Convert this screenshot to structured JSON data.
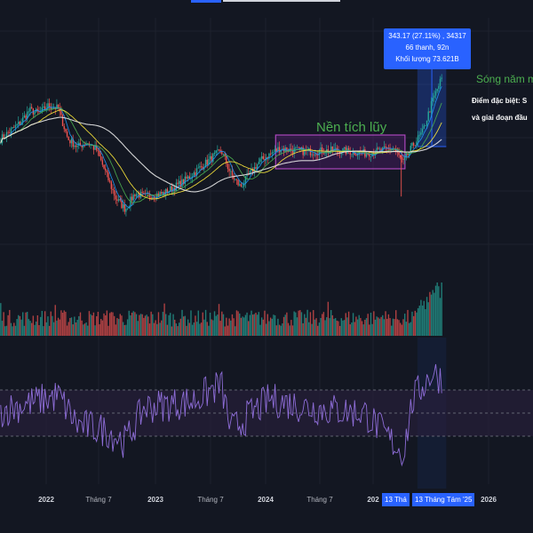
{
  "colors": {
    "background": "#131722",
    "up": "#26a69a",
    "down": "#ef5350",
    "ma_fast": "#2196f3",
    "ma_mid": "#4caf50",
    "ma_slow": "#ffeb3b",
    "ma_long": "#e8e8e8",
    "rsi": "#8e6dd8",
    "rsi_band": "#2a1f3d",
    "consolidation_box": "#7b1fa2",
    "selection": "#2962ff",
    "annotation_green": "#4caf50"
  },
  "tooltip": {
    "line1": "343.17 (27.11%) , 34317",
    "line2": "66 thanh, 92n",
    "line3": "Khối lượng 73.621B"
  },
  "annotations": {
    "consolidation": "Nền tích lũy",
    "wave": "Sóng năm m",
    "note1": "Điểm đặc biệt: S",
    "note2": "và giai đoạn đầu"
  },
  "x_axis": {
    "ticks": [
      {
        "label": "",
        "bold": false
      },
      {
        "label": "2022",
        "bold": true
      },
      {
        "label": "Tháng 7",
        "bold": false
      },
      {
        "label": "2023",
        "bold": true
      },
      {
        "label": "Tháng 7",
        "bold": false
      },
      {
        "label": "2024",
        "bold": true
      },
      {
        "label": "Tháng 7",
        "bold": false
      },
      {
        "label": "202",
        "bold": true
      },
      {
        "label": "2026",
        "bold": true
      }
    ],
    "badge_start": "13 Thá",
    "badge_end": "13 Tháng Tám '25"
  },
  "chart_data": {
    "type": "candlestick",
    "x_range": [
      "2021-10",
      "2025-08"
    ],
    "price_path": [
      {
        "date": "2021-10",
        "close": 0.62
      },
      {
        "date": "2021-12",
        "close": 0.72
      },
      {
        "date": "2022-01",
        "close": 0.8
      },
      {
        "date": "2022-02",
        "close": 0.78
      },
      {
        "date": "2022-03",
        "close": 0.83
      },
      {
        "date": "2022-04",
        "close": 0.81
      },
      {
        "date": "2022-05",
        "close": 0.62
      },
      {
        "date": "2022-06",
        "close": 0.57
      },
      {
        "date": "2022-07",
        "close": 0.6
      },
      {
        "date": "2022-08",
        "close": 0.55
      },
      {
        "date": "2022-09",
        "close": 0.4
      },
      {
        "date": "2022-10",
        "close": 0.25
      },
      {
        "date": "2022-11",
        "close": 0.18
      },
      {
        "date": "2022-12",
        "close": 0.28
      },
      {
        "date": "2023-01",
        "close": 0.26
      },
      {
        "date": "2023-03",
        "close": 0.28
      },
      {
        "date": "2023-05",
        "close": 0.35
      },
      {
        "date": "2023-07",
        "close": 0.45
      },
      {
        "date": "2023-09",
        "close": 0.55
      },
      {
        "date": "2023-10",
        "close": 0.4
      },
      {
        "date": "2023-11",
        "close": 0.32
      },
      {
        "date": "2024-01",
        "close": 0.48
      },
      {
        "date": "2024-03",
        "close": 0.56
      },
      {
        "date": "2024-06",
        "close": 0.54
      },
      {
        "date": "2024-09",
        "close": 0.55
      },
      {
        "date": "2024-12",
        "close": 0.53
      },
      {
        "date": "2025-03",
        "close": 0.56
      },
      {
        "date": "2025-04",
        "close": 0.47
      },
      {
        "date": "2025-05",
        "close": 0.58
      },
      {
        "date": "2025-06",
        "close": 0.66
      },
      {
        "date": "2025-07",
        "close": 0.85
      },
      {
        "date": "2025-08",
        "close": 1.0
      }
    ],
    "consolidation_range": [
      "2024-01",
      "2025-03"
    ],
    "selection": {
      "from": "2025-05-13",
      "to": "2025-08-13",
      "change": 343.17,
      "change_pct": 27.11
    },
    "rsi_path": [
      {
        "date": "2021-10",
        "value": 52
      },
      {
        "date": "2022-04",
        "value": 65
      },
      {
        "date": "2022-06",
        "value": 40
      },
      {
        "date": "2022-09",
        "value": 35
      },
      {
        "date": "2022-11",
        "value": 25
      },
      {
        "date": "2023-01",
        "value": 55
      },
      {
        "date": "2023-06",
        "value": 60
      },
      {
        "date": "2023-09",
        "value": 75
      },
      {
        "date": "2023-10",
        "value": 35
      },
      {
        "date": "2024-02",
        "value": 62
      },
      {
        "date": "2024-06",
        "value": 55
      },
      {
        "date": "2024-12",
        "value": 50
      },
      {
        "date": "2025-04",
        "value": 15
      },
      {
        "date": "2025-05",
        "value": 62
      },
      {
        "date": "2025-07",
        "value": 85
      },
      {
        "date": "2025-08",
        "value": 80
      }
    ],
    "rsi_bands": [
      30,
      50,
      70
    ],
    "moving_averages": [
      "fast",
      "mid",
      "slow",
      "long"
    ]
  }
}
